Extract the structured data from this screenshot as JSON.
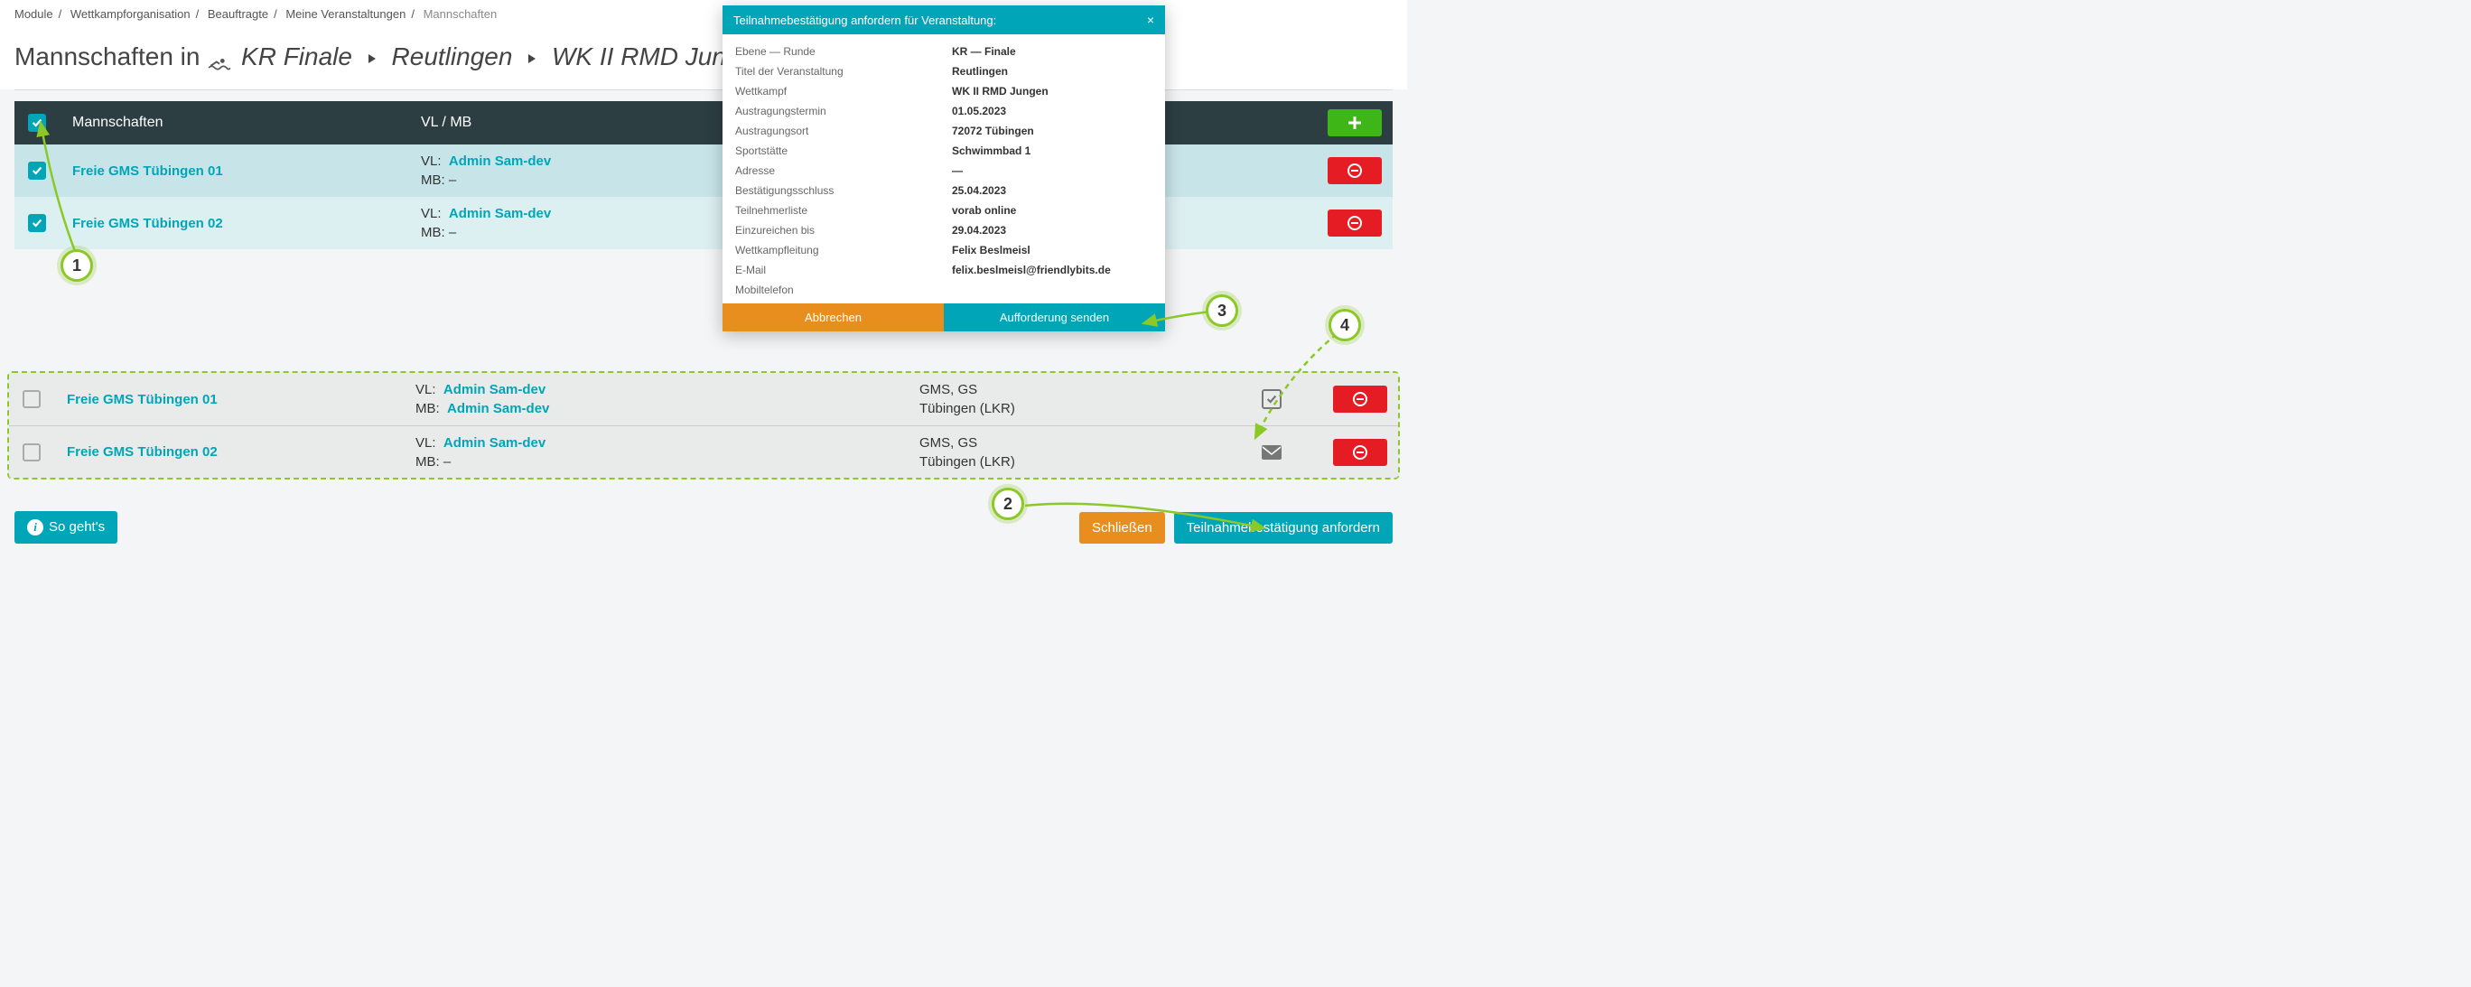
{
  "breadcrumb": {
    "items": [
      "Module",
      "Wettkampforganisation",
      "Beauftragte",
      "Meine Veranstaltungen"
    ],
    "current": "Mannschaften"
  },
  "title": {
    "prefix": "Mannschaften in",
    "part1": "KR Finale",
    "part2": "Reutlingen",
    "part3": "WK II RMD Jungen"
  },
  "table": {
    "header_teams": "Mannschaften",
    "header_vlmb": "VL / MB",
    "rows": [
      {
        "checked": true,
        "team": "Freie GMS Tübingen 01",
        "vl_label": "VL:",
        "vl": "Admin Sam-dev",
        "mb_label": "MB:",
        "mb": "–"
      },
      {
        "checked": true,
        "team": "Freie GMS Tübingen 02",
        "vl_label": "VL:",
        "vl": "Admin Sam-dev",
        "mb_label": "MB:",
        "mb": "–"
      }
    ]
  },
  "dashed": {
    "rows": [
      {
        "team": "Freie GMS Tübingen 01",
        "vl_label": "VL:",
        "vl": "Admin Sam-dev",
        "mb_label": "MB:",
        "mb": "Admin Sam-dev",
        "extra1": "GMS, GS",
        "extra2": "Tübingen (LKR)",
        "status": "checked"
      },
      {
        "team": "Freie GMS Tübingen 02",
        "vl_label": "VL:",
        "vl": "Admin Sam-dev",
        "mb_label": "MB:",
        "mb": "–",
        "extra1": "GMS, GS",
        "extra2": "Tübingen (LKR)",
        "status": "mail"
      }
    ]
  },
  "footer": {
    "help": "So geht's",
    "close": "Schließen",
    "request": "Teilnahmebestätigung anfordern"
  },
  "modal": {
    "title": "Teilnahmebestätigung anfordern für Veranstaltung:",
    "rows": [
      {
        "label": "Ebene — Runde",
        "value": "KR — Finale"
      },
      {
        "label": "Titel der Veranstaltung",
        "value": "Reutlingen"
      },
      {
        "label": "Wettkampf",
        "value": "WK II RMD Jungen"
      },
      {
        "label": "Austragungstermin",
        "value": "01.05.2023"
      },
      {
        "label": "Austragungsort",
        "value": "72072 Tübingen"
      },
      {
        "label": "Sportstätte",
        "value": "Schwimmbad 1"
      },
      {
        "label": "Adresse",
        "value": "—"
      },
      {
        "label": "Bestätigungsschluss",
        "value": "25.04.2023"
      },
      {
        "label": "Teilnehmerliste",
        "value": "vorab online"
      },
      {
        "label": "Einzureichen bis",
        "value": "29.04.2023"
      },
      {
        "label": "Wettkampfleitung",
        "value": "Felix Beslmeisl"
      },
      {
        "label": "E-Mail",
        "value": "felix.beslmeisl@friendlybits.de"
      },
      {
        "label": "Mobiltelefon",
        "value": ""
      }
    ],
    "cancel": "Abbrechen",
    "send": "Aufforderung senden"
  },
  "callouts": {
    "c1": "1",
    "c2": "2",
    "c3": "3",
    "c4": "4"
  },
  "colors": {
    "teal": "#00a6b8",
    "green": "#8ac926",
    "orange": "#e88e1e",
    "red": "#e51c23",
    "headerDark": "#2c3e42"
  }
}
